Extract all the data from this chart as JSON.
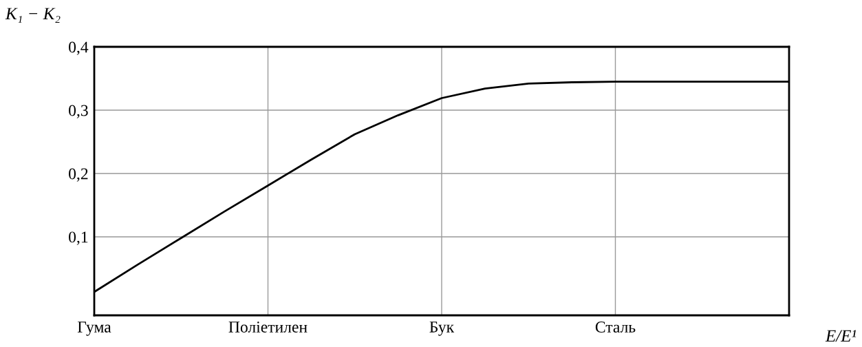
{
  "chart_data": {
    "type": "line",
    "xlabel": "E/E¹",
    "ylabel": "K₁ − K₂",
    "categories": [
      "Гума",
      null,
      null,
      null,
      "Поліетилен",
      null,
      null,
      null,
      "Бук",
      null,
      null,
      null,
      "Сталь",
      null,
      null,
      null,
      null
    ],
    "ylim": [
      -0.024,
      0.4
    ],
    "yticks": [
      {
        "value": 0.1,
        "label": "0,1"
      },
      {
        "value": 0.2,
        "label": "0,2"
      },
      {
        "value": 0.3,
        "label": "0,3"
      },
      {
        "value": 0.4,
        "label": "0,4"
      }
    ],
    "grid": true,
    "series": [
      {
        "color": "#000000",
        "values": [
          0.013,
          0.056,
          0.098,
          0.14,
          0.181,
          0.222,
          0.262,
          0.292,
          0.319,
          0.334,
          0.342,
          0.344,
          0.345,
          0.345,
          0.345,
          0.345,
          0.345
        ]
      }
    ]
  }
}
